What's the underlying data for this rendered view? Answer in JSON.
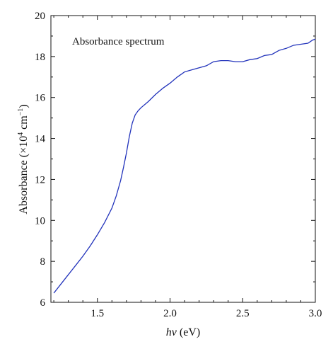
{
  "chart_data": {
    "type": "line",
    "xlabel_italic": "hν",
    "xlabel_unit": " (eV)",
    "ylabel_main": "Absorbance (×10",
    "ylabel_exp1": "4",
    "ylabel_mid": " cm",
    "ylabel_exp2": "−1",
    "ylabel_close": ")",
    "annotation": "Absorbance spectrum",
    "xlim": [
      1.18,
      3.0
    ],
    "ylim": [
      6,
      20
    ],
    "x_ticks": [
      1.5,
      2.0,
      2.5,
      3.0
    ],
    "x_tick_labels": [
      "1.5",
      "2.0",
      "2.5",
      "3.0"
    ],
    "y_ticks": [
      6,
      8,
      10,
      12,
      14,
      16,
      18,
      20
    ],
    "y_tick_labels": [
      "6",
      "8",
      "10",
      "12",
      "14",
      "16",
      "18",
      "20"
    ],
    "grid": false,
    "line_color": "#2233bb",
    "series": [
      {
        "x": [
          1.2,
          1.25,
          1.3,
          1.35,
          1.4,
          1.45,
          1.5,
          1.55,
          1.6,
          1.63,
          1.66,
          1.68,
          1.7,
          1.72,
          1.74,
          1.76,
          1.78,
          1.8,
          1.85,
          1.9,
          1.95,
          2.0,
          2.05,
          2.1,
          2.15,
          2.2,
          2.25,
          2.3,
          2.35,
          2.4,
          2.45,
          2.5,
          2.55,
          2.6,
          2.65,
          2.7,
          2.75,
          2.8,
          2.85,
          2.9,
          2.95,
          2.98,
          3.0
        ],
        "y": [
          6.45,
          6.9,
          7.35,
          7.8,
          8.25,
          8.75,
          9.3,
          9.9,
          10.6,
          11.2,
          11.95,
          12.6,
          13.3,
          14.1,
          14.75,
          15.15,
          15.35,
          15.5,
          15.8,
          16.15,
          16.45,
          16.7,
          17.0,
          17.25,
          17.35,
          17.45,
          17.55,
          17.75,
          17.8,
          17.8,
          17.75,
          17.75,
          17.85,
          17.9,
          18.05,
          18.1,
          18.3,
          18.4,
          18.55,
          18.6,
          18.65,
          18.8,
          18.85
        ]
      }
    ]
  }
}
